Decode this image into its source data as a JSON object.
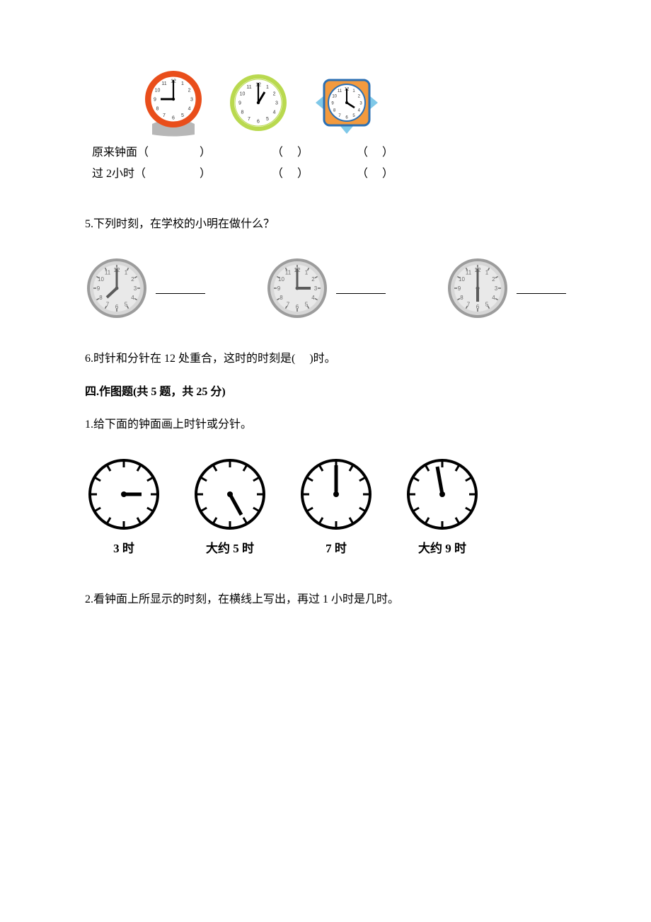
{
  "topClocks": {
    "row1Label": "原来钟面（",
    "row2Label": "过 2小时（",
    "cellR": "）",
    "cellL": "（",
    "clocks": [
      {
        "type": "decorative-round",
        "outerColor": "#e94e1b",
        "ringColor": "#e94e1b",
        "faceColor": "#ffffff",
        "baseColor": "#b7b7b7",
        "numberColor": "#333333",
        "hourHandColor": "#000000",
        "minuteHandColor": "#000000",
        "hour": 9,
        "minute": 0
      },
      {
        "type": "round",
        "outerColor": "#b9d94f",
        "ringColor": "#b9d94f",
        "faceColor": "#ffffff",
        "numberColor": "#333333",
        "hourHandColor": "#000000",
        "minuteHandColor": "#000000",
        "hour": 1,
        "minute": 0
      },
      {
        "type": "square",
        "bodyColor": "#f39a3e",
        "frameColor": "#2b6fb3",
        "faceColor": "#ffffff",
        "numberColor": "#333333",
        "hourHandColor": "#000000",
        "minuteHandColor": "#000000",
        "hour": 4,
        "minute": 0
      }
    ]
  },
  "q5": {
    "text": "5.下列时刻，在学校的小明在做什么？",
    "clocks": [
      {
        "hour": 8,
        "minute": 0,
        "faceColor": "#e9e9e9",
        "rimDark": "#9c9c9c",
        "rimLight": "#d7d7d7",
        "tickColor": "#6a6a6a",
        "numColor": "#6b6b6b",
        "handColor": "#5b5b5b"
      },
      {
        "hour": 3,
        "minute": 0,
        "faceColor": "#e9e9e9",
        "rimDark": "#9c9c9c",
        "rimLight": "#d7d7d7",
        "tickColor": "#6a6a6a",
        "numColor": "#6b6b6b",
        "handColor": "#5b5b5b"
      },
      {
        "hour": 6,
        "minute": 0,
        "faceColor": "#e9e9e9",
        "rimDark": "#9c9c9c",
        "rimLight": "#d7d7d7",
        "tickColor": "#6a6a6a",
        "numColor": "#6b6b6b",
        "handColor": "#5b5b5b"
      }
    ]
  },
  "q6": {
    "text_a": "6.时针和分针在 12 处重合，这时的时刻是(",
    "text_b": ")时。"
  },
  "section4": {
    "heading": "四.作图题(共 5 题，共 25 分)"
  },
  "s4q1": {
    "text": "1.给下面的钟面画上时针或分针。",
    "clocks": [
      {
        "label": "3 时",
        "stroke": "#000000",
        "hasMinute": false,
        "hasHour": true,
        "hour": 3,
        "minute": 0,
        "hourLen": 22
      },
      {
        "label": "大约 5 时",
        "stroke": "#000000",
        "hasMinute": true,
        "hasHour": false,
        "hour": 5,
        "minute": 25,
        "minLen": 32
      },
      {
        "label": "7 时",
        "stroke": "#000000",
        "hasMinute": true,
        "hasHour": false,
        "hour": 7,
        "minute": 0,
        "minLen": 34
      },
      {
        "label": "大约 9 时",
        "stroke": "#000000",
        "hasMinute": true,
        "hasHour": false,
        "hour": 9,
        "minute": 57,
        "minLen": 32
      }
    ]
  },
  "s4q2": {
    "text": "2.看钟面上所显示的时刻，在横线上写出，再过 1 小时是几时。"
  }
}
